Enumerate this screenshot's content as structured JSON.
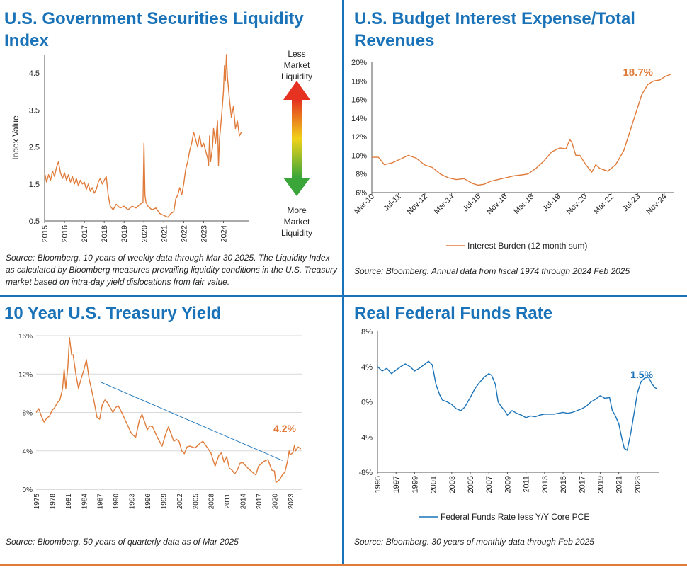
{
  "charts": [
    {
      "title": "U.S. Government Securities Liquidity Index",
      "source": "Source: Bloomberg. 10 years of weekly data through Mar 30 2025. The Liquidity Index as calculated by Bloomberg measures prevailing liquidity conditions in the U.S. Treasury market based on intra-day yield dislocations from fair value.",
      "indicator": {
        "top": [
          "Less",
          "Market",
          "Liquidity"
        ],
        "bottom": [
          "More",
          "Market",
          "Liquidity"
        ]
      }
    },
    {
      "title": "U.S. Budget Interest Expense/Total Revenues",
      "source": "Source: Bloomberg. Annual data from fiscal 1974 through 2024 Feb 2025"
    },
    {
      "title": "10 Year U.S. Treasury Yield",
      "source": "Source: Bloomberg. 50 years of quarterly data as of Mar 2025"
    },
    {
      "title": "Real Federal Funds Rate",
      "source": "Source: Bloomberg. 30 years of monthly data through Feb 2025"
    }
  ],
  "colors": {
    "title": "#1a73b8",
    "orange": "#e07b39",
    "blue": "#1a73b8",
    "grid": "#d9d9d9"
  },
  "chart_data": [
    {
      "type": "line",
      "ylabel": "Index Value",
      "ylim": [
        0.5,
        5.0
      ],
      "yticks": [
        0.5,
        1.5,
        2.5,
        3.5,
        4.5
      ],
      "ytick_labels": [
        "0.5",
        "1.5",
        "2.5",
        "3.5",
        "4.5"
      ],
      "xlim": [
        2015,
        2025.3
      ],
      "xticks": [
        2015,
        2016,
        2017,
        2018,
        2019,
        2020,
        2021,
        2022,
        2023,
        2024
      ],
      "xtick_labels": [
        "2015",
        "2016",
        "2017",
        "2018",
        "2019",
        "2020",
        "2021",
        "2022",
        "2023",
        "2024"
      ],
      "grid": false,
      "series": [
        {
          "color": "#e07b39",
          "x": [
            2015.0,
            2015.1,
            2015.2,
            2015.3,
            2015.4,
            2015.5,
            2015.6,
            2015.7,
            2015.8,
            2015.9,
            2016.0,
            2016.1,
            2016.2,
            2016.3,
            2016.4,
            2016.5,
            2016.6,
            2016.7,
            2016.8,
            2016.9,
            2017.0,
            2017.1,
            2017.2,
            2017.3,
            2017.4,
            2017.5,
            2017.6,
            2017.7,
            2017.8,
            2017.9,
            2018.0,
            2018.1,
            2018.2,
            2018.3,
            2018.45,
            2018.6,
            2018.8,
            2019.0,
            2019.2,
            2019.4,
            2019.6,
            2019.8,
            2019.95,
            2020.0,
            2020.05,
            2020.1,
            2020.2,
            2020.4,
            2020.6,
            2020.8,
            2021.0,
            2021.2,
            2021.35,
            2021.5,
            2021.6,
            2021.7,
            2021.8,
            2021.9,
            2022.0,
            2022.1,
            2022.2,
            2022.3,
            2022.4,
            2022.5,
            2022.6,
            2022.7,
            2022.8,
            2022.9,
            2023.0,
            2023.1,
            2023.2,
            2023.25,
            2023.3,
            2023.35,
            2023.45,
            2023.5,
            2023.6,
            2023.7,
            2023.75,
            2023.8,
            2023.9,
            2024.0,
            2024.05,
            2024.1,
            2024.15,
            2024.2,
            2024.3,
            2024.4,
            2024.5,
            2024.6,
            2024.7,
            2024.8,
            2024.9
          ],
          "y": [
            1.8,
            1.55,
            1.75,
            1.6,
            1.85,
            1.7,
            1.95,
            2.1,
            1.8,
            1.65,
            1.8,
            1.6,
            1.75,
            1.55,
            1.7,
            1.5,
            1.65,
            1.45,
            1.6,
            1.5,
            1.55,
            1.35,
            1.5,
            1.3,
            1.4,
            1.25,
            1.35,
            1.55,
            1.65,
            1.5,
            1.6,
            1.7,
            1.2,
            0.9,
            0.8,
            0.95,
            0.85,
            0.9,
            0.8,
            0.9,
            0.85,
            0.95,
            1.0,
            2.6,
            1.2,
            1.0,
            0.9,
            0.8,
            0.85,
            0.7,
            0.65,
            0.6,
            0.7,
            0.75,
            1.1,
            1.2,
            1.4,
            1.2,
            1.5,
            1.9,
            2.1,
            2.4,
            2.6,
            2.9,
            2.7,
            2.5,
            2.8,
            2.5,
            2.6,
            2.4,
            2.2,
            2.0,
            2.8,
            2.1,
            2.5,
            3.0,
            2.6,
            3.2,
            2.0,
            2.7,
            3.3,
            4.0,
            4.7,
            4.3,
            5.0,
            4.4,
            3.8,
            3.3,
            3.6,
            3.0,
            3.2,
            2.8,
            2.9
          ]
        }
      ]
    },
    {
      "type": "line",
      "ylim": [
        6,
        20
      ],
      "yticks": [
        6,
        8,
        10,
        12,
        14,
        16,
        18,
        20
      ],
      "ytick_labels": [
        "6%",
        "8%",
        "10%",
        "12%",
        "14%",
        "16%",
        "18%",
        "20%"
      ],
      "xlim": [
        2010.17,
        2025.3
      ],
      "xticks": [
        2010.17,
        2011.5,
        2012.83,
        2014.17,
        2015.5,
        2016.83,
        2018.17,
        2019.5,
        2020.83,
        2022.17,
        2023.5,
        2024.83
      ],
      "xtick_labels": [
        "Mar-10",
        "Jul-11",
        "Nov-12",
        "Mar-14",
        "Jul-15",
        "Nov-16",
        "Mar-18",
        "Jul-19",
        "Nov-20",
        "Mar-22",
        "Jul-23",
        "Nov-24"
      ],
      "grid": false,
      "legend": "bottom",
      "annotation": "18.7%",
      "series": [
        {
          "name": "Interest Burden (12 month sum)",
          "color": "#e07b39",
          "x": [
            2010.17,
            2010.5,
            2010.8,
            2011.2,
            2011.6,
            2012.0,
            2012.4,
            2012.8,
            2013.2,
            2013.6,
            2014.0,
            2014.4,
            2014.8,
            2015.2,
            2015.5,
            2015.8,
            2016.1,
            2016.5,
            2016.9,
            2017.3,
            2017.7,
            2018.0,
            2018.4,
            2018.8,
            2019.2,
            2019.6,
            2019.9,
            2020.1,
            2020.2,
            2020.4,
            2020.6,
            2020.9,
            2021.2,
            2021.4,
            2021.6,
            2022.0,
            2022.4,
            2022.8,
            2023.1,
            2023.4,
            2023.7,
            2024.0,
            2024.3,
            2024.6,
            2024.9,
            2025.15
          ],
          "y": [
            9.8,
            9.8,
            9.0,
            9.2,
            9.6,
            10.0,
            9.7,
            9.0,
            8.7,
            8.0,
            7.6,
            7.4,
            7.5,
            7.0,
            6.8,
            6.9,
            7.2,
            7.4,
            7.6,
            7.8,
            7.9,
            8.0,
            8.6,
            9.4,
            10.4,
            10.8,
            10.7,
            11.7,
            11.4,
            10.0,
            10.0,
            9.0,
            8.2,
            9.0,
            8.6,
            8.3,
            9.0,
            10.5,
            12.5,
            14.5,
            16.5,
            17.6,
            18.0,
            18.1,
            18.5,
            18.7
          ]
        }
      ]
    },
    {
      "type": "line",
      "ylim": [
        0,
        16
      ],
      "yticks": [
        0,
        4,
        8,
        12,
        16
      ],
      "ytick_labels": [
        "0%",
        "4%",
        "8%",
        "12%",
        "16%"
      ],
      "xlim": [
        1975,
        2025.3
      ],
      "xticks": [
        1975,
        1978,
        1981,
        1984,
        1987,
        1990,
        1993,
        1996,
        1999,
        2002,
        2005,
        2008,
        2011,
        2014,
        2017,
        2020,
        2023
      ],
      "xtick_labels": [
        "1975",
        "1978",
        "1981",
        "1984",
        "1987",
        "1990",
        "1993",
        "1996",
        "1999",
        "2002",
        "2005",
        "2008",
        "2011",
        "2014",
        "2017",
        "2020",
        "2023"
      ],
      "grid": true,
      "annotation": "4.2%",
      "series": [
        {
          "color": "#e07b39",
          "x": [
            1975.0,
            1975.5,
            1976.0,
            1976.5,
            1977.0,
            1977.5,
            1978.0,
            1978.5,
            1979.0,
            1979.5,
            1980.0,
            1980.3,
            1980.6,
            1981.0,
            1981.3,
            1981.7,
            1982.0,
            1982.5,
            1983.0,
            1983.5,
            1984.0,
            1984.5,
            1985.0,
            1985.5,
            1986.0,
            1986.5,
            1987.0,
            1987.5,
            1988.0,
            1988.5,
            1989.0,
            1989.5,
            1990.0,
            1990.5,
            1991.0,
            1992.0,
            1993.0,
            1993.8,
            1994.5,
            1995.0,
            1996.0,
            1996.5,
            1997.0,
            1998.0,
            1998.8,
            1999.5,
            2000.0,
            2001.0,
            2001.5,
            2002.0,
            2002.5,
            2003.0,
            2003.5,
            2004.0,
            2005.0,
            2006.0,
            2006.5,
            2007.0,
            2008.0,
            2008.8,
            2009.5,
            2010.0,
            2010.5,
            2011.0,
            2011.5,
            2012.0,
            2012.5,
            2013.0,
            2013.5,
            2014.0,
            2015.0,
            2016.0,
            2016.5,
            2017.0,
            2018.0,
            2018.8,
            2019.5,
            2020.0,
            2020.3,
            2021.0,
            2021.5,
            2022.0,
            2022.5,
            2022.8,
            2023.0,
            2023.5,
            2023.8,
            2024.0,
            2024.5,
            2025.0
          ],
          "y": [
            8.0,
            8.4,
            7.6,
            7.0,
            7.4,
            7.6,
            8.2,
            8.5,
            9.0,
            9.3,
            10.5,
            12.5,
            10.5,
            12.8,
            15.8,
            14.0,
            14.0,
            12.0,
            10.5,
            11.5,
            12.4,
            13.5,
            11.5,
            10.3,
            9.0,
            7.5,
            7.3,
            8.8,
            9.3,
            9.0,
            8.5,
            8.0,
            8.5,
            8.7,
            8.2,
            7.0,
            5.8,
            5.4,
            7.2,
            7.8,
            6.2,
            6.6,
            6.5,
            5.3,
            4.5,
            5.8,
            6.5,
            5.0,
            5.2,
            5.0,
            4.0,
            3.7,
            4.4,
            4.5,
            4.3,
            4.8,
            5.0,
            4.6,
            3.8,
            2.4,
            3.5,
            3.8,
            2.8,
            3.4,
            2.2,
            2.0,
            1.6,
            2.0,
            2.7,
            2.8,
            2.2,
            1.7,
            1.5,
            2.4,
            2.9,
            3.1,
            2.0,
            1.9,
            0.7,
            1.0,
            1.5,
            1.8,
            3.0,
            4.0,
            3.6,
            3.8,
            4.6,
            4.0,
            4.4,
            4.2
          ]
        },
        {
          "color": "#1a73b8",
          "x": [
            1987.0,
            2021.5
          ],
          "y": [
            11.2,
            3.0
          ]
        }
      ]
    },
    {
      "type": "line",
      "ylim": [
        -8,
        8
      ],
      "yticks": [
        -8,
        -4,
        0,
        4,
        8
      ],
      "ytick_labels": [
        "-8%",
        "-4%",
        "0%",
        "4%",
        "8%"
      ],
      "xlim": [
        1995,
        2025.3
      ],
      "xticks": [
        1995,
        1997,
        1999,
        2001,
        2003,
        2005,
        2007,
        2009,
        2011,
        2013,
        2015,
        2017,
        2019,
        2021,
        2023
      ],
      "xtick_labels": [
        "1995",
        "1997",
        "1999",
        "2001",
        "2003",
        "2005",
        "2007",
        "2009",
        "2011",
        "2013",
        "2015",
        "2017",
        "2019",
        "2021",
        "2023"
      ],
      "grid": false,
      "legend": "bottom",
      "annotation": "1.5%",
      "series": [
        {
          "name": "Federal Funds Rate less Y/Y Core PCE",
          "color": "#1a73b8",
          "x": [
            1995.0,
            1995.5,
            1996.0,
            1996.5,
            1997.0,
            1997.5,
            1998.0,
            1998.5,
            1999.0,
            1999.5,
            2000.0,
            2000.5,
            2000.9,
            2001.3,
            2001.7,
            2002.0,
            2002.5,
            2003.0,
            2003.5,
            2004.0,
            2004.4,
            2005.0,
            2005.5,
            2006.0,
            2006.5,
            2007.0,
            2007.3,
            2007.7,
            2008.0,
            2008.3,
            2008.7,
            2009.0,
            2009.5,
            2010.0,
            2010.5,
            2011.0,
            2011.5,
            2012.0,
            2012.5,
            2013.0,
            2014.0,
            2015.0,
            2015.5,
            2016.0,
            2016.5,
            2017.0,
            2017.5,
            2018.0,
            2018.5,
            2019.0,
            2019.5,
            2020.0,
            2020.3,
            2020.6,
            2021.0,
            2021.3,
            2021.6,
            2021.9,
            2022.3,
            2022.7,
            2023.0,
            2023.4,
            2023.8,
            2024.2,
            2024.6,
            2024.9,
            2025.1
          ],
          "y": [
            4.0,
            3.5,
            3.8,
            3.2,
            3.6,
            4.0,
            4.3,
            4.0,
            3.5,
            3.8,
            4.2,
            4.6,
            4.2,
            2.0,
            0.8,
            0.2,
            0.0,
            -0.3,
            -0.8,
            -1.0,
            -0.6,
            0.5,
            1.5,
            2.2,
            2.8,
            3.2,
            3.0,
            2.0,
            0.0,
            -0.5,
            -1.0,
            -1.5,
            -1.0,
            -1.3,
            -1.5,
            -1.8,
            -1.6,
            -1.7,
            -1.5,
            -1.4,
            -1.4,
            -1.2,
            -1.3,
            -1.2,
            -1.0,
            -0.8,
            -0.5,
            0.0,
            0.3,
            0.7,
            0.4,
            0.5,
            -1.0,
            -1.5,
            -2.5,
            -4.0,
            -5.3,
            -5.5,
            -3.5,
            -1.0,
            1.0,
            2.3,
            2.7,
            2.8,
            2.0,
            1.6,
            1.5
          ]
        }
      ]
    }
  ]
}
